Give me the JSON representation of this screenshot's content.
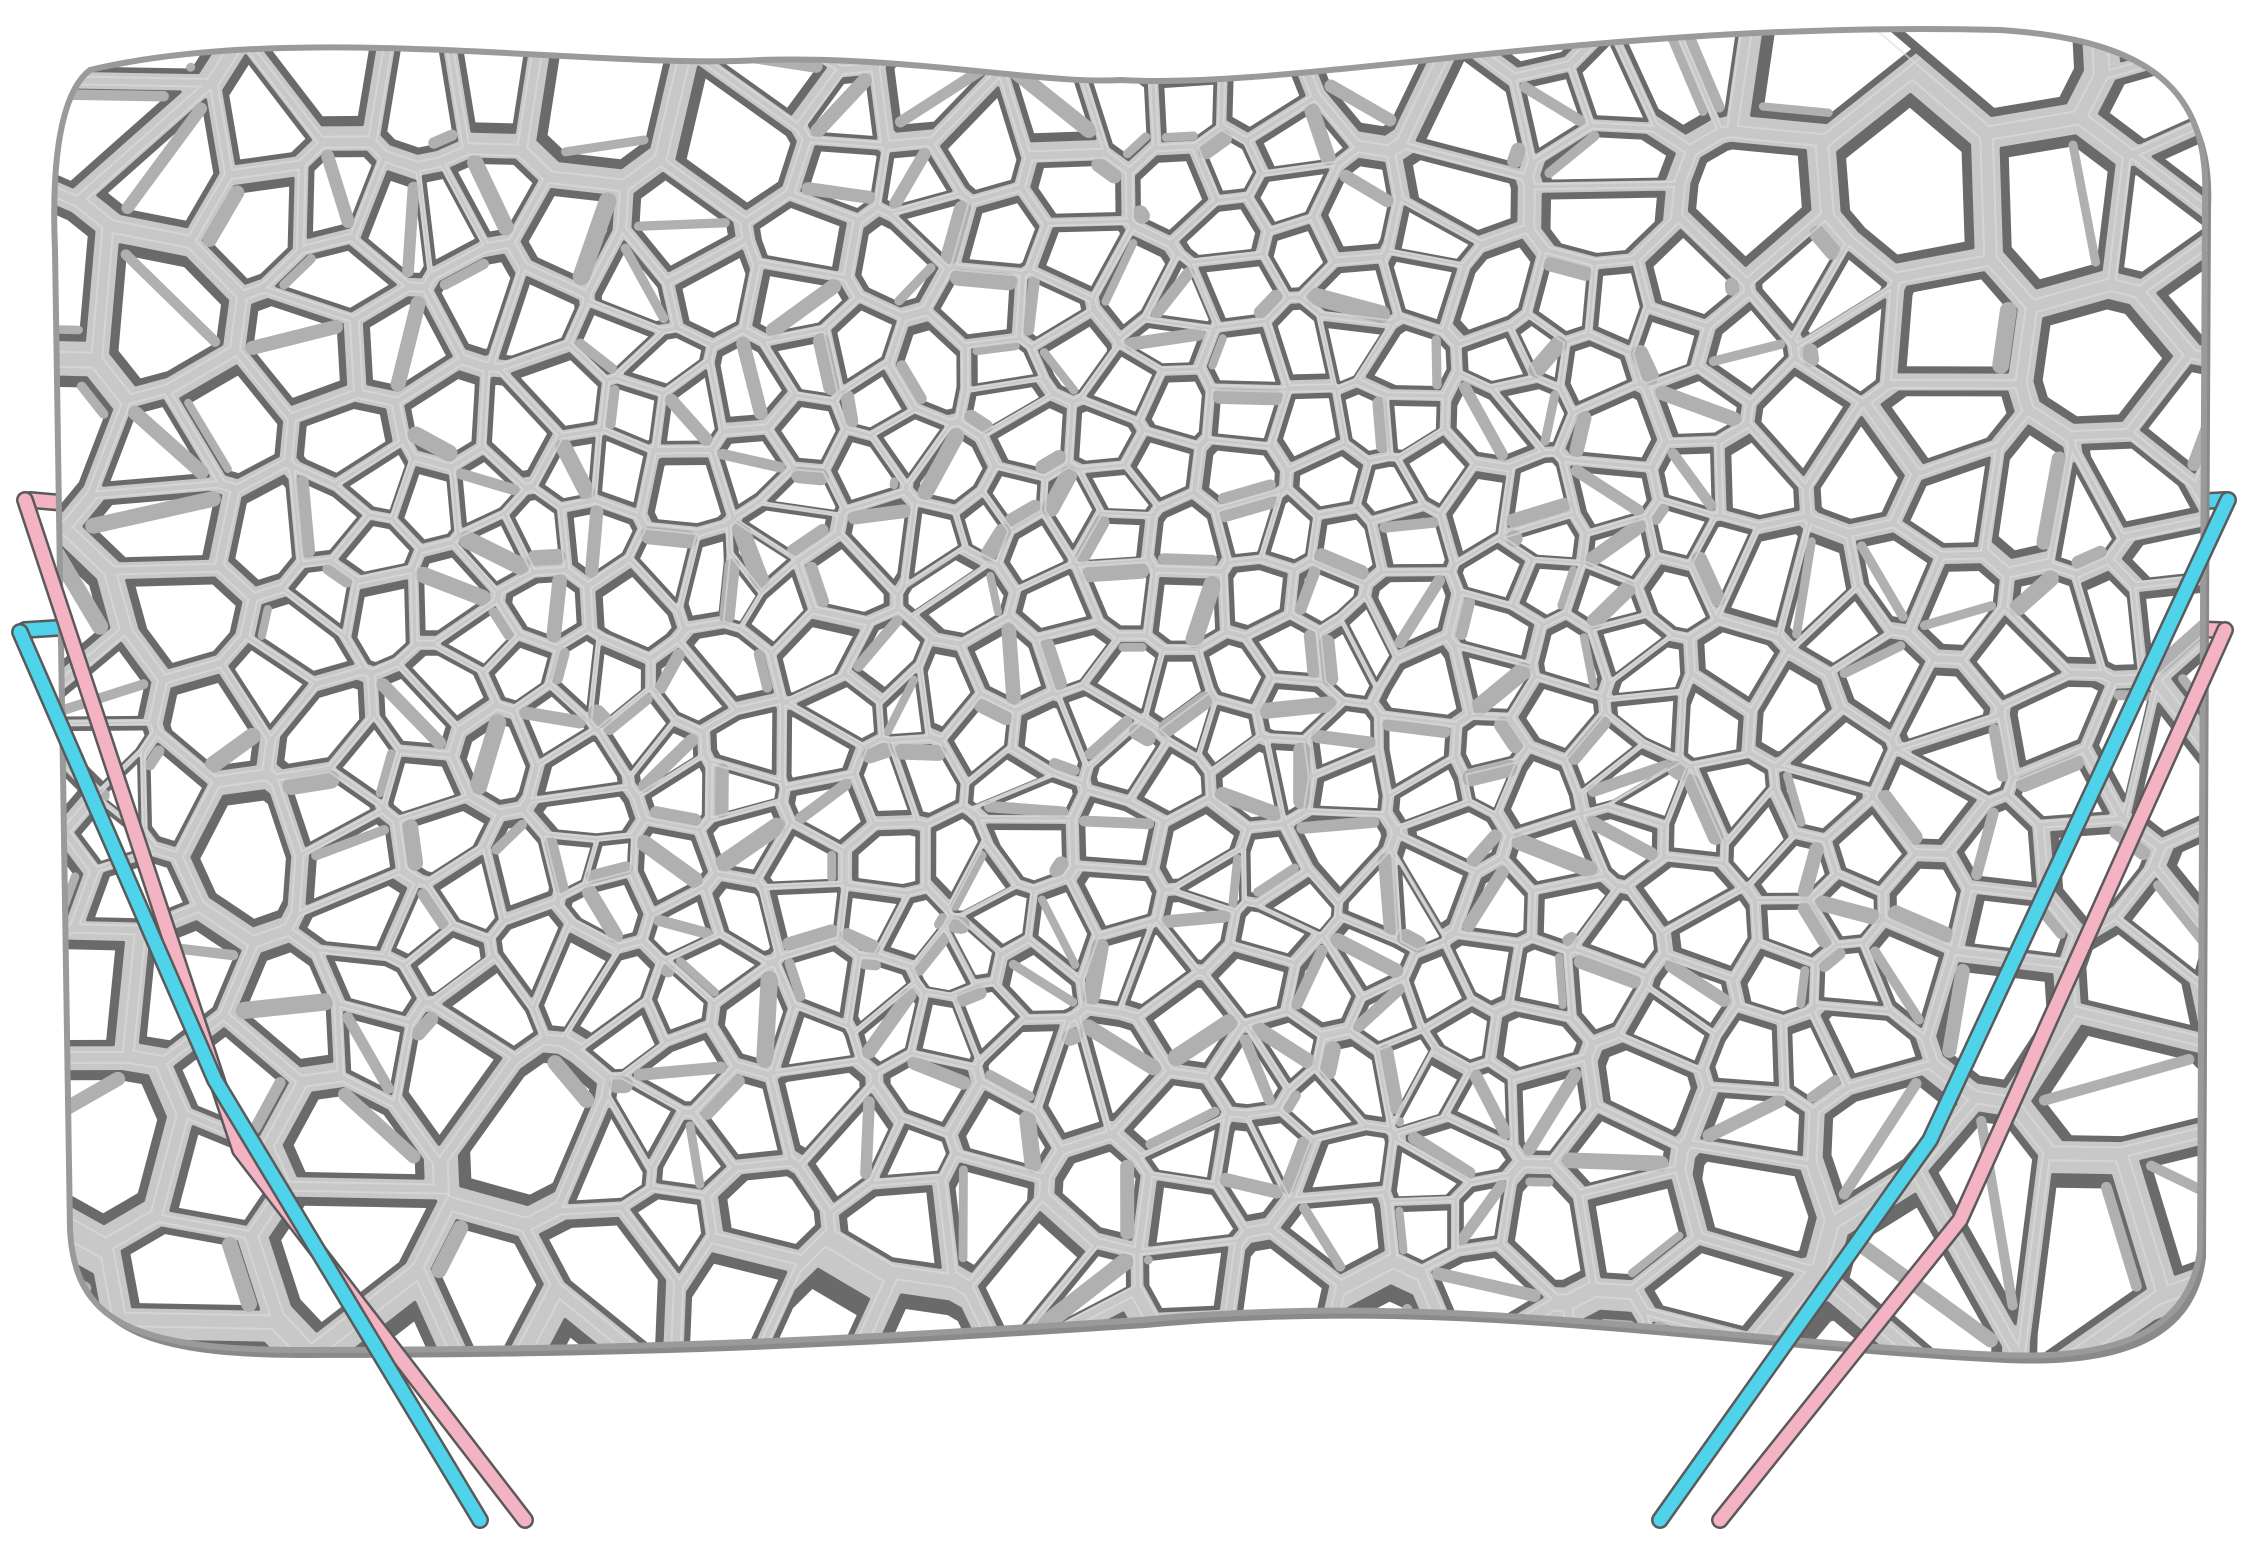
{
  "scene": {
    "subject": "voronoi-lattice-cushion",
    "colors": {
      "background": "#ffffff",
      "lattice_fill": "#c8c8c8",
      "lattice_highlight": "#dedede",
      "lattice_shadow": "#6a6a6a",
      "cell_void": "#ffffff",
      "frame_rail_cyan": "#4fd3ea",
      "frame_rail_pink": "#f4b3c2"
    }
  }
}
